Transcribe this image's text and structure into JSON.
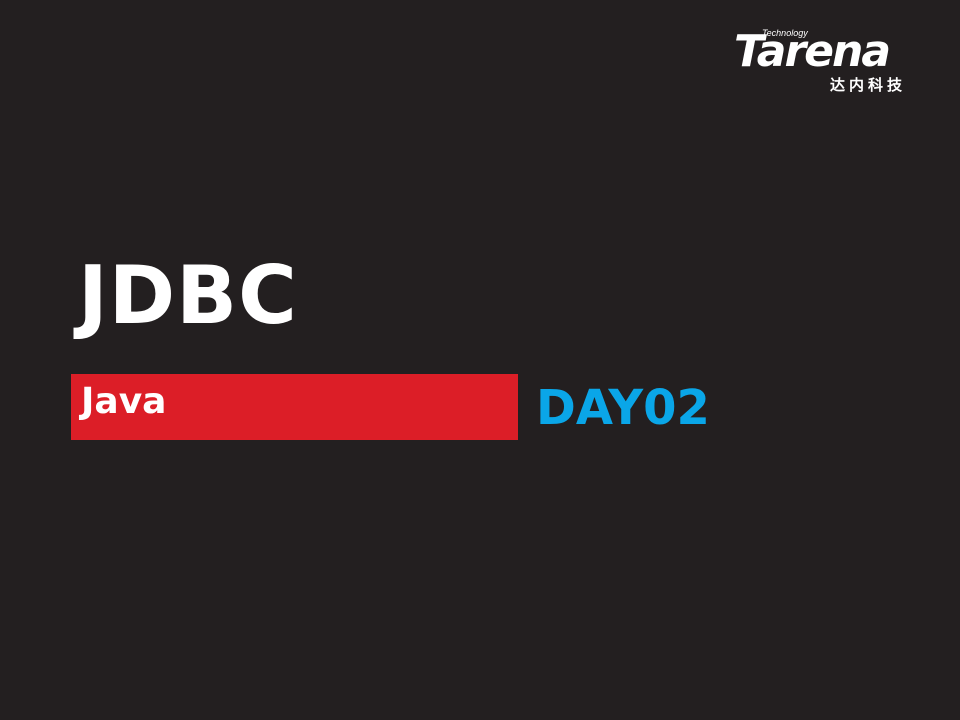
{
  "logo": {
    "tagline": "Technology",
    "wordmark": "Tarena",
    "chinese_name": "达内科技"
  },
  "slide": {
    "title": "JDBC",
    "subject": "Java",
    "day": "DAY02"
  },
  "colors": {
    "background": "#231f20",
    "accent_red": "#dc1e27",
    "accent_blue": "#0aa6e8",
    "text": "#ffffff"
  }
}
